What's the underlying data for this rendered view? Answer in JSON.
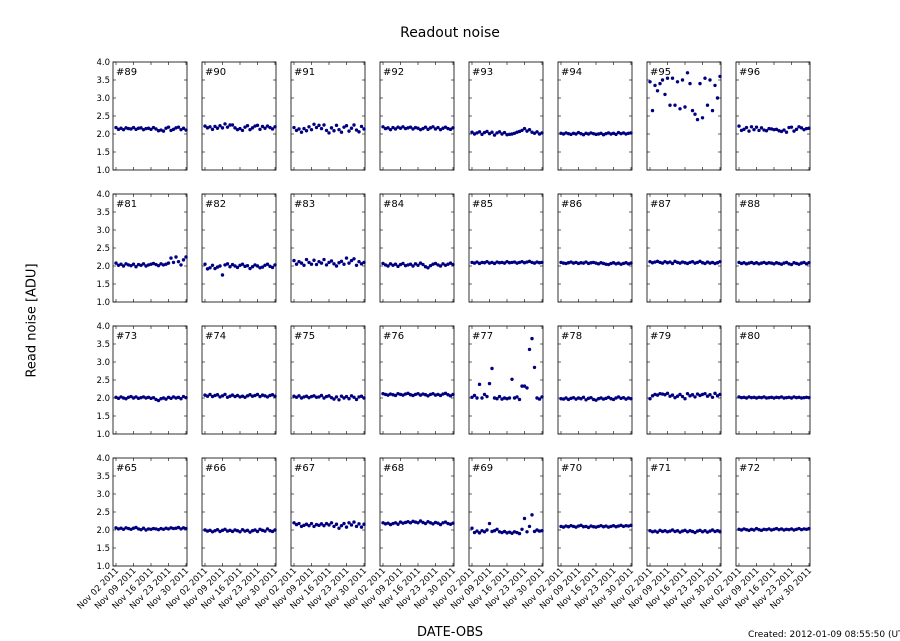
{
  "chart_data": {
    "type": "scatter",
    "title": "Readout noise",
    "xlabel": "DATE-OBS",
    "ylabel": "Read noise [ADU]",
    "footer": "Created: 2012-01-09 08:55:50 (UTC)",
    "ylim": [
      1.0,
      4.0
    ],
    "yticks": [
      "1.0",
      "1.5",
      "2.0",
      "2.5",
      "3.0",
      "3.5",
      "4.0"
    ],
    "xlim_day_of_nov_2011": [
      0.8,
      30.4
    ],
    "xticks": [
      {
        "day": 2,
        "label": "Nov 02 2011"
      },
      {
        "day": 9,
        "label": "Nov 09 2011"
      },
      {
        "day": 16,
        "label": "Nov 16 2011"
      },
      {
        "day": 23,
        "label": "Nov 23 2011"
      },
      {
        "day": 30,
        "label": "Nov 30 2011"
      }
    ],
    "grid": false,
    "marker_color": "#000080",
    "x_days": [
      2,
      3,
      4,
      5,
      6,
      7,
      8,
      9,
      10,
      11,
      12,
      13,
      14,
      15,
      16,
      17,
      18,
      19,
      20,
      21,
      22,
      23,
      24,
      25,
      26,
      27,
      28,
      29,
      30
    ],
    "panels": [
      {
        "label": "#89",
        "values": [
          2.18,
          2.13,
          2.16,
          2.12,
          2.17,
          2.15,
          2.14,
          2.18,
          2.13,
          2.16,
          2.17,
          2.12,
          2.15,
          2.16,
          2.13,
          2.18,
          2.14,
          2.09,
          2.11,
          2.08,
          2.16,
          2.19,
          2.1,
          2.13,
          2.17,
          2.19,
          2.12,
          2.16,
          2.11
        ]
      },
      {
        "label": "#90",
        "values": [
          2.22,
          2.17,
          2.2,
          2.13,
          2.21,
          2.16,
          2.23,
          2.17,
          2.28,
          2.19,
          2.25,
          2.25,
          2.17,
          2.12,
          2.15,
          2.1,
          2.19,
          2.23,
          2.12,
          2.17,
          2.22,
          2.24,
          2.13,
          2.21,
          2.16,
          2.22,
          2.18,
          2.14,
          2.2
        ]
      },
      {
        "label": "#91",
        "values": [
          2.18,
          2.1,
          2.14,
          2.05,
          2.15,
          2.09,
          2.2,
          2.12,
          2.27,
          2.18,
          2.24,
          2.15,
          2.25,
          2.1,
          2.03,
          2.17,
          2.09,
          2.24,
          2.12,
          2.05,
          2.19,
          2.23,
          2.08,
          2.16,
          2.25,
          2.11,
          2.06,
          2.21,
          2.14
        ]
      },
      {
        "label": "#92",
        "values": [
          2.2,
          2.15,
          2.17,
          2.12,
          2.18,
          2.14,
          2.19,
          2.16,
          2.2,
          2.15,
          2.17,
          2.19,
          2.14,
          2.18,
          2.16,
          2.12,
          2.15,
          2.19,
          2.13,
          2.17,
          2.2,
          2.14,
          2.18,
          2.12,
          2.16,
          2.19,
          2.15,
          2.13,
          2.17
        ]
      },
      {
        "label": "#93",
        "values": [
          2.05,
          2.0,
          2.03,
          2.06,
          1.99,
          2.04,
          2.07,
          2.01,
          2.05,
          1.97,
          2.03,
          2.06,
          2.0,
          2.04,
          1.98,
          1.99,
          2.0,
          2.02,
          2.05,
          2.07,
          2.1,
          2.15,
          2.08,
          2.12,
          2.05,
          2.02,
          2.06,
          2.0,
          2.03
        ]
      },
      {
        "label": "#94",
        "values": [
          2.02,
          2.0,
          2.03,
          2.01,
          1.99,
          2.02,
          2.0,
          2.04,
          2.01,
          1.98,
          2.02,
          2.0,
          2.03,
          2.01,
          1.99,
          2.0,
          2.02,
          1.98,
          2.01,
          2.03,
          2.0,
          2.02,
          1.99,
          2.04,
          2.01,
          2.03,
          2.0,
          2.02,
          2.03
        ]
      },
      {
        "label": "#95",
        "values": [
          3.45,
          2.65,
          3.35,
          3.2,
          3.4,
          3.5,
          3.1,
          3.55,
          2.8,
          3.55,
          2.8,
          3.45,
          2.7,
          3.5,
          2.75,
          3.7,
          3.4,
          2.65,
          2.55,
          2.4,
          3.4,
          2.45,
          3.55,
          2.8,
          3.5,
          2.65,
          3.35,
          3.0,
          3.6
        ]
      },
      {
        "label": "#96",
        "values": [
          2.22,
          2.1,
          2.13,
          2.18,
          2.08,
          2.2,
          2.12,
          2.19,
          2.1,
          2.17,
          2.11,
          2.09,
          2.15,
          2.14,
          2.12,
          2.13,
          2.09,
          2.07,
          2.11,
          2.05,
          2.18,
          2.19,
          2.08,
          2.13,
          2.2,
          2.17,
          2.12,
          2.15,
          2.16
        ]
      },
      {
        "label": "#81",
        "values": [
          2.08,
          2.02,
          2.05,
          2.0,
          2.06,
          2.03,
          2.01,
          2.05,
          1.98,
          2.04,
          2.02,
          2.06,
          2.0,
          2.03,
          2.05,
          2.07,
          2.04,
          2.01,
          2.06,
          2.03,
          2.05,
          2.08,
          2.22,
          2.1,
          2.25,
          2.12,
          2.03,
          2.17,
          2.25
        ]
      },
      {
        "label": "#82",
        "values": [
          2.05,
          1.92,
          1.95,
          2.02,
          1.93,
          1.97,
          2.0,
          1.75,
          2.03,
          2.06,
          1.98,
          2.04,
          2.0,
          1.96,
          2.02,
          2.05,
          1.99,
          2.01,
          1.93,
          1.98,
          2.03,
          2.0,
          1.95,
          1.97,
          2.02,
          2.05,
          1.99,
          1.96,
          2.03
        ]
      },
      {
        "label": "#83",
        "values": [
          2.15,
          2.05,
          2.12,
          2.08,
          2.02,
          2.18,
          2.1,
          2.05,
          2.16,
          2.04,
          2.12,
          2.08,
          2.18,
          2.03,
          2.1,
          2.14,
          2.06,
          2.0,
          2.09,
          2.13,
          2.05,
          2.22,
          2.08,
          2.15,
          2.2,
          2.02,
          2.12,
          2.06,
          2.1
        ]
      },
      {
        "label": "#84",
        "values": [
          2.07,
          2.03,
          2.0,
          2.06,
          2.02,
          2.05,
          1.99,
          2.04,
          2.07,
          2.01,
          2.03,
          2.05,
          2.0,
          2.06,
          2.02,
          2.08,
          2.04,
          1.98,
          1.95,
          2.01,
          2.05,
          2.07,
          2.03,
          2.0,
          2.06,
          2.02,
          2.05,
          2.08,
          2.04
        ]
      },
      {
        "label": "#85",
        "values": [
          2.1,
          2.08,
          2.11,
          2.07,
          2.1,
          2.09,
          2.12,
          2.08,
          2.1,
          2.07,
          2.11,
          2.09,
          2.1,
          2.08,
          2.12,
          2.09,
          2.1,
          2.11,
          2.08,
          2.1,
          2.12,
          2.09,
          2.11,
          2.13,
          2.1,
          2.08,
          2.11,
          2.09,
          2.1
        ]
      },
      {
        "label": "#86",
        "values": [
          2.1,
          2.08,
          2.07,
          2.09,
          2.11,
          2.08,
          2.1,
          2.07,
          2.09,
          2.08,
          2.11,
          2.07,
          2.09,
          2.1,
          2.08,
          2.06,
          2.09,
          2.07,
          2.05,
          2.04,
          2.07,
          2.09,
          2.06,
          2.08,
          2.05,
          2.07,
          2.09,
          2.06,
          2.08
        ]
      },
      {
        "label": "#87",
        "values": [
          2.12,
          2.09,
          2.11,
          2.13,
          2.1,
          2.08,
          2.12,
          2.09,
          2.11,
          2.07,
          2.13,
          2.1,
          2.08,
          2.11,
          2.09,
          2.07,
          2.1,
          2.12,
          2.08,
          2.1,
          2.13,
          2.09,
          2.07,
          2.11,
          2.08,
          2.1,
          2.07,
          2.09,
          2.12
        ]
      },
      {
        "label": "#88",
        "values": [
          2.1,
          2.07,
          2.09,
          2.06,
          2.08,
          2.1,
          2.07,
          2.09,
          2.06,
          2.08,
          2.1,
          2.07,
          2.09,
          2.08,
          2.06,
          2.09,
          2.07,
          2.05,
          2.08,
          2.1,
          2.06,
          2.04,
          2.09,
          2.07,
          2.05,
          2.08,
          2.1,
          2.06,
          2.09
        ]
      },
      {
        "label": "#73",
        "values": [
          2.02,
          1.99,
          2.03,
          2.0,
          1.98,
          2.02,
          2.04,
          2.0,
          2.03,
          1.99,
          2.01,
          2.03,
          2.0,
          2.02,
          1.99,
          2.01,
          1.96,
          1.93,
          1.98,
          2.0,
          1.97,
          2.02,
          1.99,
          2.03,
          2.0,
          2.02,
          1.98,
          2.04,
          2.01
        ]
      },
      {
        "label": "#74",
        "values": [
          2.08,
          2.05,
          2.1,
          2.04,
          2.07,
          2.09,
          2.03,
          2.06,
          2.1,
          2.02,
          2.05,
          2.08,
          2.04,
          2.07,
          2.03,
          2.05,
          2.02,
          2.06,
          2.09,
          2.05,
          2.07,
          2.1,
          2.04,
          2.08,
          2.06,
          2.03,
          2.07,
          2.09,
          2.05
        ]
      },
      {
        "label": "#75",
        "values": [
          2.05,
          2.02,
          2.06,
          2.0,
          2.03,
          2.05,
          2.01,
          2.04,
          2.06,
          2.02,
          2.03,
          2.07,
          2.0,
          2.04,
          2.06,
          2.01,
          1.97,
          2.03,
          1.95,
          2.05,
          2.0,
          2.04,
          1.98,
          2.06,
          2.02,
          1.96,
          2.03,
          2.05,
          2.0
        ]
      },
      {
        "label": "#76",
        "values": [
          2.12,
          2.1,
          2.08,
          2.11,
          2.09,
          2.07,
          2.12,
          2.1,
          2.08,
          2.11,
          2.13,
          2.09,
          2.07,
          2.1,
          2.12,
          2.08,
          2.11,
          2.09,
          2.06,
          2.1,
          2.12,
          2.08,
          2.1,
          2.07,
          2.11,
          2.13,
          2.09,
          2.06,
          2.1
        ]
      },
      {
        "label": "#77",
        "values": [
          2.02,
          2.07,
          2.0,
          2.38,
          2.0,
          2.1,
          2.04,
          2.4,
          2.82,
          2.0,
          1.98,
          2.04,
          1.97,
          2.0,
          1.98,
          2.0,
          2.52,
          2.0,
          2.03,
          1.96,
          2.33,
          2.33,
          2.28,
          3.35,
          3.65,
          2.85,
          2.0,
          1.97,
          2.03
        ]
      },
      {
        "label": "#78",
        "values": [
          1.98,
          1.97,
          2.0,
          1.96,
          1.99,
          2.01,
          1.97,
          2.0,
          1.98,
          2.02,
          1.95,
          1.99,
          2.01,
          1.96,
          1.94,
          1.98,
          2.0,
          1.97,
          1.99,
          2.02,
          1.98,
          1.96,
          2.0,
          2.03,
          1.99,
          2.01,
          1.97,
          2.0,
          1.98
        ]
      },
      {
        "label": "#79",
        "values": [
          1.98,
          2.06,
          2.1,
          2.08,
          2.12,
          2.11,
          2.09,
          2.13,
          2.05,
          2.08,
          2.01,
          2.05,
          2.1,
          2.04,
          1.98,
          2.12,
          2.06,
          2.09,
          2.03,
          2.11,
          2.07,
          2.1,
          2.12,
          2.05,
          2.09,
          2.02,
          2.13,
          2.06,
          2.1
        ]
      },
      {
        "label": "#80",
        "values": [
          2.03,
          2.01,
          2.02,
          2.0,
          2.03,
          2.01,
          2.02,
          2.0,
          2.02,
          2.01,
          2.03,
          2.0,
          2.01,
          2.02,
          2.0,
          2.02,
          2.01,
          2.03,
          2.0,
          2.01,
          2.02,
          2.0,
          2.03,
          2.01,
          2.02,
          2.0,
          2.01,
          2.02,
          2.01
        ]
      },
      {
        "label": "#65",
        "values": [
          2.06,
          2.03,
          2.05,
          2.02,
          2.06,
          2.04,
          2.02,
          2.05,
          2.07,
          2.03,
          2.01,
          2.05,
          2.0,
          2.03,
          2.02,
          2.04,
          2.03,
          2.01,
          2.04,
          2.02,
          2.05,
          2.03,
          2.06,
          2.04,
          2.05,
          2.07,
          2.03,
          2.06,
          2.04
        ]
      },
      {
        "label": "#66",
        "values": [
          2.0,
          1.97,
          1.99,
          1.95,
          1.98,
          2.01,
          1.96,
          1.99,
          2.02,
          1.97,
          1.99,
          1.96,
          2.0,
          1.98,
          1.95,
          2.01,
          1.97,
          1.99,
          1.94,
          1.98,
          2.0,
          1.96,
          2.02,
          1.99,
          1.97,
          2.03,
          1.98,
          1.96,
          2.0
        ]
      },
      {
        "label": "#67",
        "values": [
          2.2,
          2.15,
          2.18,
          2.1,
          2.13,
          2.16,
          2.12,
          2.18,
          2.1,
          2.15,
          2.13,
          2.17,
          2.12,
          2.18,
          2.14,
          2.2,
          2.1,
          2.16,
          2.05,
          2.12,
          2.18,
          2.08,
          2.2,
          2.14,
          2.22,
          2.1,
          2.17,
          2.08,
          2.16
        ]
      },
      {
        "label": "#68",
        "values": [
          2.2,
          2.17,
          2.19,
          2.15,
          2.18,
          2.2,
          2.16,
          2.22,
          2.19,
          2.21,
          2.23,
          2.2,
          2.24,
          2.22,
          2.2,
          2.25,
          2.21,
          2.18,
          2.23,
          2.2,
          2.17,
          2.21,
          2.19,
          2.15,
          2.2,
          2.22,
          2.18,
          2.16,
          2.19
        ]
      },
      {
        "label": "#69",
        "values": [
          2.05,
          1.93,
          1.97,
          1.92,
          1.98,
          1.95,
          2.0,
          2.18,
          1.96,
          1.98,
          2.02,
          1.95,
          1.93,
          1.96,
          1.92,
          1.94,
          1.91,
          1.95,
          1.93,
          1.9,
          2.02,
          2.32,
          1.95,
          2.1,
          2.42,
          1.96,
          2.0,
          1.97,
          1.98
        ]
      },
      {
        "label": "#70",
        "values": [
          2.1,
          2.08,
          2.11,
          2.09,
          2.12,
          2.1,
          2.08,
          2.11,
          2.13,
          2.09,
          2.1,
          2.07,
          2.11,
          2.09,
          2.08,
          2.1,
          2.12,
          2.09,
          2.11,
          2.08,
          2.1,
          2.12,
          2.09,
          2.11,
          2.13,
          2.1,
          2.12,
          2.11,
          2.13
        ]
      },
      {
        "label": "#71",
        "values": [
          1.98,
          1.95,
          1.97,
          1.94,
          1.99,
          1.96,
          1.98,
          1.95,
          1.97,
          2.0,
          1.96,
          1.98,
          1.94,
          1.97,
          1.99,
          1.95,
          1.98,
          1.96,
          1.93,
          1.97,
          1.99,
          1.95,
          1.98,
          1.94,
          1.97,
          2.0,
          1.96,
          1.98,
          1.95
        ]
      },
      {
        "label": "#72",
        "values": [
          2.02,
          2.0,
          2.03,
          2.01,
          1.99,
          2.02,
          2.0,
          2.04,
          2.01,
          1.99,
          2.02,
          2.01,
          2.03,
          2.0,
          2.02,
          2.04,
          2.01,
          2.03,
          2.0,
          2.02,
          2.01,
          2.03,
          2.0,
          2.02,
          2.04,
          2.01,
          2.03,
          2.02,
          2.04
        ]
      }
    ]
  }
}
